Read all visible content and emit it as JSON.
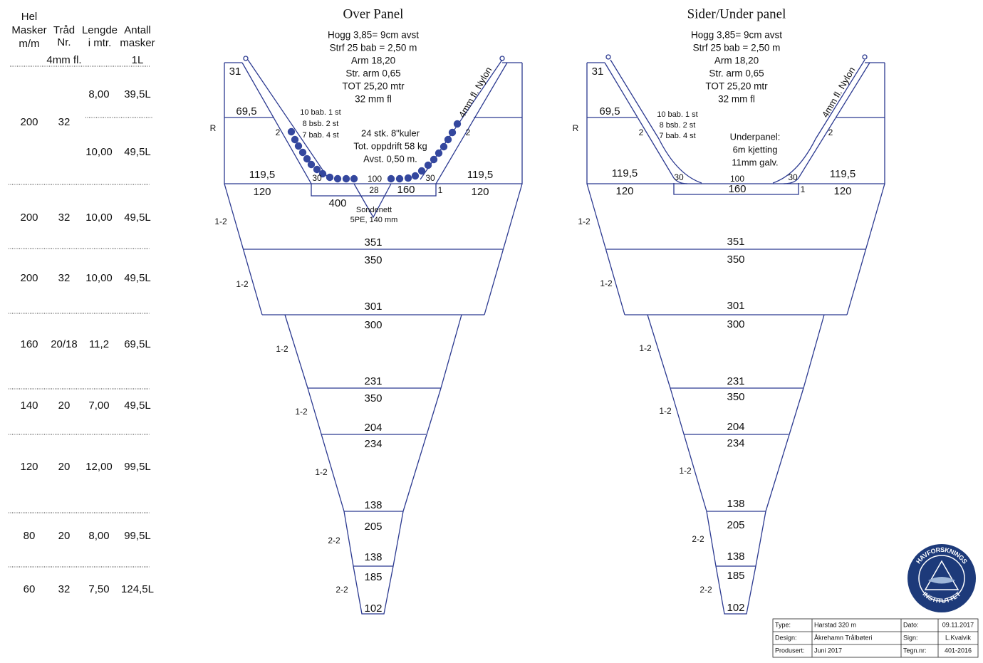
{
  "table": {
    "header": [
      "Hel",
      "Masker",
      "m/m",
      "Tråd",
      "Nr.",
      "Lengde",
      "i mtr.",
      "Antall",
      "masker",
      "4mm fl.",
      "1L"
    ],
    "rows": [
      [
        "200",
        "32",
        "8,00",
        "39,5L",
        "10,00",
        "49,5L"
      ],
      [
        "200",
        "32",
        "10,00",
        "49,5L"
      ],
      [
        "200",
        "32",
        "10,00",
        "49,5L"
      ],
      [
        "160",
        "20/18",
        "11,2",
        "69,5L"
      ],
      [
        "140",
        "20",
        "7,00",
        "49,5L"
      ],
      [
        "120",
        "20",
        "12,00",
        "99,5L"
      ],
      [
        "80",
        "20",
        "8,00",
        "99,5L"
      ],
      [
        "60",
        "32",
        "7,50",
        "124,5L"
      ]
    ]
  },
  "panels": [
    {
      "title": "Over Panel",
      "notes": [
        "Hogg 3,85= 9cm avst",
        "Strf 25 bab = 2,50 m",
        "Arm 18,20",
        "Str. arm 0,65",
        "TOT 25,20 mtr",
        "32 mm fl"
      ],
      "labels": [
        "31",
        "69,5",
        "R",
        "2",
        "10 bab. 1 st",
        "8 bsb. 2 st",
        "7 bab. 4 st",
        "24 stk. 8\"kuler",
        "Tot. oppdrift 58 kg",
        "Avst. 0,50 m.",
        "4mm fl. Nylon",
        "2",
        "119,5",
        "30",
        "100",
        "28",
        "160",
        "30",
        "1",
        "119,5",
        "120",
        "120",
        "400",
        "Sondenett",
        "5PE, 140 mm",
        "1-2",
        "351",
        "350",
        "1-2",
        "301",
        "300",
        "1-2",
        "231",
        "350",
        "1-2",
        "204",
        "234",
        "1-2",
        "138",
        "205",
        "2-2",
        "138",
        "185",
        "2-2",
        "102"
      ]
    },
    {
      "title": "Sider/Under panel",
      "notes": [
        "Hogg 3,85= 9cm avst",
        "Strf 25 bab = 2,50 m",
        "Arm 18,20",
        "Str. arm 0,65",
        "TOT 25,20 mtr",
        "32 mm fl"
      ],
      "labels": [
        "31",
        "69,5",
        "R",
        "2",
        "10 bab. 1 st",
        "8 bsb. 2 st",
        "7 bab. 4 st",
        "Underpanel:",
        "6m kjetting",
        "11mm galv.",
        "4mm fl. Nylon",
        "2",
        "119,5",
        "30",
        "100",
        "160",
        "30",
        "1",
        "119,5",
        "120",
        "120",
        "1-2",
        "351",
        "350",
        "1-2",
        "301",
        "300",
        "1-2",
        "231",
        "350",
        "1-2",
        "204",
        "234",
        "1-2",
        "138",
        "205",
        "2-2",
        "138",
        "185",
        "2-2",
        "102"
      ]
    }
  ],
  "title_block": {
    "rows": [
      [
        "Type:",
        "Harstad 320 m",
        "Dato:",
        "09.11.2017"
      ],
      [
        "Design:",
        "Åkrehamn Trålbøteri",
        "Sign:",
        "L.Kvalvik"
      ],
      [
        "Produsert:",
        "Juni 2017",
        "Tegn.nr:",
        "401-2016"
      ]
    ]
  },
  "logo": {
    "top": "HAVFORSKNINGS",
    "bottom": "INSTITUTTET"
  }
}
